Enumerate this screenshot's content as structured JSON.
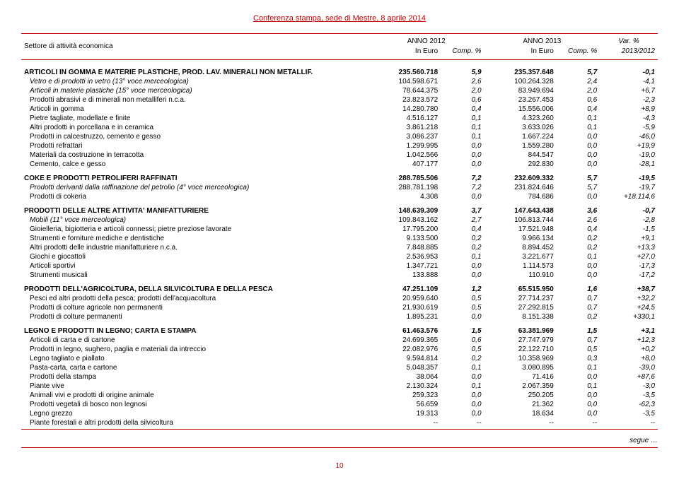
{
  "header": "Conferenza stampa, sede di Mestre, 8 aprile 2014",
  "col_headers": {
    "label": "Settore di attività economica",
    "year1": "ANNO 2012",
    "year2": "ANNO 2013",
    "var": "Var. %",
    "eur": "In Euro",
    "comp": "Comp. %",
    "var_years": "2013/2012"
  },
  "sections": [
    {
      "title": "ARTICOLI IN GOMMA E MATERIE PLASTICHE, PROD. LAV. MINERALI NON METALLIF.",
      "v1": "235.560.718",
      "p1": "5,9",
      "v2": "235.357.648",
      "p2": "5,7",
      "var": "-0,1",
      "rows": [
        {
          "l": "Vetro e di prodotti in vetro (13° voce merceologica)",
          "v1": "104.598.671",
          "p1": "2,6",
          "v2": "100.264.328",
          "p2": "2,4",
          "var": "-4,1",
          "italic": true
        },
        {
          "l": "Articoli in materie plastiche (15° voce merceologica)",
          "v1": "78.644.375",
          "p1": "2,0",
          "v2": "83.949.694",
          "p2": "2,0",
          "var": "+6,7",
          "italic": true
        },
        {
          "l": "Prodotti abrasivi e di minerali non metalliferi n.c.a.",
          "v1": "23.823.572",
          "p1": "0,6",
          "v2": "23.267.453",
          "p2": "0,6",
          "var": "-2,3"
        },
        {
          "l": "Articoli in gomma",
          "v1": "14.280.780",
          "p1": "0,4",
          "v2": "15.556.006",
          "p2": "0,4",
          "var": "+8,9"
        },
        {
          "l": "Pietre tagliate, modellate e finite",
          "v1": "4.516.127",
          "p1": "0,1",
          "v2": "4.323.260",
          "p2": "0,1",
          "var": "-4,3"
        },
        {
          "l": "Altri prodotti in porcellana e in ceramica",
          "v1": "3.861.218",
          "p1": "0,1",
          "v2": "3.633.026",
          "p2": "0,1",
          "var": "-5,9"
        },
        {
          "l": "Prodotti in calcestruzzo, cemento e gesso",
          "v1": "3.086.237",
          "p1": "0,1",
          "v2": "1.667.224",
          "p2": "0,0",
          "var": "-46,0"
        },
        {
          "l": "Prodotti refrattari",
          "v1": "1.299.995",
          "p1": "0,0",
          "v2": "1.559.280",
          "p2": "0,0",
          "var": "+19,9"
        },
        {
          "l": "Materiali da costruzione in terracotta",
          "v1": "1.042.566",
          "p1": "0,0",
          "v2": "844.547",
          "p2": "0,0",
          "var": "-19,0"
        },
        {
          "l": "Cemento, calce e gesso",
          "v1": "407.177",
          "p1": "0,0",
          "v2": "292.830",
          "p2": "0,0",
          "var": "-28,1"
        }
      ]
    },
    {
      "title": "COKE E PRODOTTI PETROLIFERI RAFFINATI",
      "v1": "288.785.506",
      "p1": "7,2",
      "v2": "232.609.332",
      "p2": "5,7",
      "var": "-19,5",
      "rows": [
        {
          "l": "Prodotti derivanti dalla raffinazione del petrolio (4° voce merceologica)",
          "v1": "288.781.198",
          "p1": "7,2",
          "v2": "231.824.646",
          "p2": "5,7",
          "var": "-19,7",
          "italic": true
        },
        {
          "l": "Prodotti di cokeria",
          "v1": "4.308",
          "p1": "0,0",
          "v2": "784.686",
          "p2": "0,0",
          "var": "+18.114,6"
        }
      ]
    },
    {
      "title": "PRODOTTI DELLE ALTRE ATTIVITA' MANIFATTURIERE",
      "v1": "148.639.309",
      "p1": "3,7",
      "v2": "147.643.438",
      "p2": "3,6",
      "var": "-0,7",
      "rows": [
        {
          "l": "Mobili (11° voce merceologica)",
          "v1": "109.843.162",
          "p1": "2,7",
          "v2": "106.813.744",
          "p2": "2,6",
          "var": "-2,8",
          "italic": true
        },
        {
          "l": "Gioielleria, bigiotteria e articoli connessi; pietre preziose lavorate",
          "v1": "17.795.200",
          "p1": "0,4",
          "v2": "17.521.948",
          "p2": "0,4",
          "var": "-1,5"
        },
        {
          "l": "Strumenti e forniture mediche e dentistiche",
          "v1": "9.133.500",
          "p1": "0,2",
          "v2": "9.966.134",
          "p2": "0,2",
          "var": "+9,1"
        },
        {
          "l": "Altri prodotti delle industrie manifatturiere n.c.a.",
          "v1": "7.848.885",
          "p1": "0,2",
          "v2": "8.894.452",
          "p2": "0,2",
          "var": "+13,3"
        },
        {
          "l": "Giochi e giocattoli",
          "v1": "2.536.953",
          "p1": "0,1",
          "v2": "3.221.677",
          "p2": "0,1",
          "var": "+27,0"
        },
        {
          "l": "Articoli sportivi",
          "v1": "1.347.721",
          "p1": "0,0",
          "v2": "1.114.573",
          "p2": "0,0",
          "var": "-17,3"
        },
        {
          "l": "Strumenti musicali",
          "v1": "133.888",
          "p1": "0,0",
          "v2": "110.910",
          "p2": "0,0",
          "var": "-17,2"
        }
      ]
    },
    {
      "title": "PRODOTTI DELL'AGRICOLTURA, DELLA SILVICOLTURA E DELLA PESCA",
      "v1": "47.251.109",
      "p1": "1,2",
      "v2": "65.515.950",
      "p2": "1,6",
      "var": "+38,7",
      "rows": [
        {
          "l": "Pesci ed altri prodotti della pesca; prodotti dell'acquacoltura",
          "v1": "20.959.640",
          "p1": "0,5",
          "v2": "27.714.237",
          "p2": "0,7",
          "var": "+32,2"
        },
        {
          "l": "Prodotti di colture agricole non permanenti",
          "v1": "21.930.619",
          "p1": "0,5",
          "v2": "27.292.815",
          "p2": "0,7",
          "var": "+24,5"
        },
        {
          "l": "Prodotti di colture permanenti",
          "v1": "1.895.231",
          "p1": "0,0",
          "v2": "8.151.338",
          "p2": "0,2",
          "var": "+330,1"
        }
      ]
    },
    {
      "title": "LEGNO E PRODOTTI IN LEGNO; CARTA E STAMPA",
      "v1": "61.463.576",
      "p1": "1,5",
      "v2": "63.381.969",
      "p2": "1,5",
      "var": "+3,1",
      "rows": [
        {
          "l": "Articoli di carta e di cartone",
          "v1": "24.699.365",
          "p1": "0,6",
          "v2": "27.747.979",
          "p2": "0,7",
          "var": "+12,3"
        },
        {
          "l": "Prodotti in legno, sughero, paglia e materiali da intreccio",
          "v1": "22.082.976",
          "p1": "0,5",
          "v2": "22.122.710",
          "p2": "0,5",
          "var": "+0,2"
        },
        {
          "l": "Legno tagliato e piallato",
          "v1": "9.594.814",
          "p1": "0,2",
          "v2": "10.358.969",
          "p2": "0,3",
          "var": "+8,0"
        },
        {
          "l": "Pasta-carta, carta e cartone",
          "v1": "5.048.357",
          "p1": "0,1",
          "v2": "3.080.895",
          "p2": "0,1",
          "var": "-39,0"
        },
        {
          "l": "Prodotti della stampa",
          "v1": "38.064",
          "p1": "0,0",
          "v2": "71.416",
          "p2": "0,0",
          "var": "+87,6"
        },
        {
          "l": "Piante vive",
          "v1": "2.130.324",
          "p1": "0,1",
          "v2": "2.067.359",
          "p2": "0,1",
          "var": "-3,0"
        },
        {
          "l": "Animali vivi e prodotti di origine animale",
          "v1": "259.323",
          "p1": "0,0",
          "v2": "250.205",
          "p2": "0,0",
          "var": "-3,5"
        },
        {
          "l": "Prodotti vegetali di bosco non legnosi",
          "v1": "56.659",
          "p1": "0,0",
          "v2": "21.362",
          "p2": "0,0",
          "var": "-62,3"
        },
        {
          "l": "Legno grezzo",
          "v1": "19.313",
          "p1": "0,0",
          "v2": "18.634",
          "p2": "0,0",
          "var": "-3,5"
        },
        {
          "l": "Piante forestali e altri prodotti della silvicoltura",
          "v1": "--",
          "p1": "--",
          "v2": "--",
          "p2": "--",
          "var": "--"
        }
      ]
    }
  ],
  "segue": "segue …",
  "page": "10"
}
